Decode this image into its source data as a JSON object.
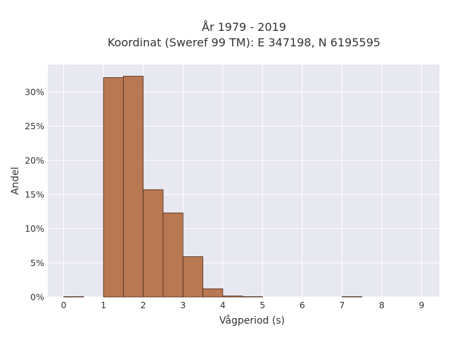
{
  "chart_data": {
    "type": "bar",
    "title": "År 1979 - 2019",
    "subtitle": "Koordinat (Sweref 99 TM): E 347198, N 6195595",
    "xlabel": "Vågperiod (s)",
    "ylabel": "Andel",
    "xlim": [
      -0.4,
      9.45
    ],
    "ylim": [
      0,
      0.34
    ],
    "xticks": [
      0,
      1,
      2,
      3,
      4,
      5,
      6,
      7,
      8,
      9
    ],
    "yticks": [
      {
        "value": 0,
        "label": "0%"
      },
      {
        "value": 0.05,
        "label": "5%"
      },
      {
        "value": 0.1,
        "label": "10%"
      },
      {
        "value": 0.15,
        "label": "15%"
      },
      {
        "value": 0.2,
        "label": "20%"
      },
      {
        "value": 0.25,
        "label": "25%"
      },
      {
        "value": 0.3,
        "label": "30%"
      }
    ],
    "grid": true,
    "bin_width": 0.5,
    "bars": [
      {
        "x0": 0.0,
        "x1": 0.5,
        "value": 0.0005
      },
      {
        "x0": 1.0,
        "x1": 1.5,
        "value": 0.321
      },
      {
        "x0": 1.5,
        "x1": 2.0,
        "value": 0.323
      },
      {
        "x0": 2.0,
        "x1": 2.5,
        "value": 0.157
      },
      {
        "x0": 2.5,
        "x1": 3.0,
        "value": 0.123
      },
      {
        "x0": 3.0,
        "x1": 3.5,
        "value": 0.059
      },
      {
        "x0": 3.5,
        "x1": 4.0,
        "value": 0.012
      },
      {
        "x0": 4.0,
        "x1": 4.5,
        "value": 0.0015
      },
      {
        "x0": 4.5,
        "x1": 5.0,
        "value": 0.0005
      },
      {
        "x0": 7.0,
        "x1": 7.5,
        "value": 0.0005
      }
    ],
    "colors": {
      "bar_fill": "#b87852",
      "bar_stroke": "#4a2a17",
      "plot_bg": "#e8e8f1",
      "grid": "#ffffff"
    }
  }
}
